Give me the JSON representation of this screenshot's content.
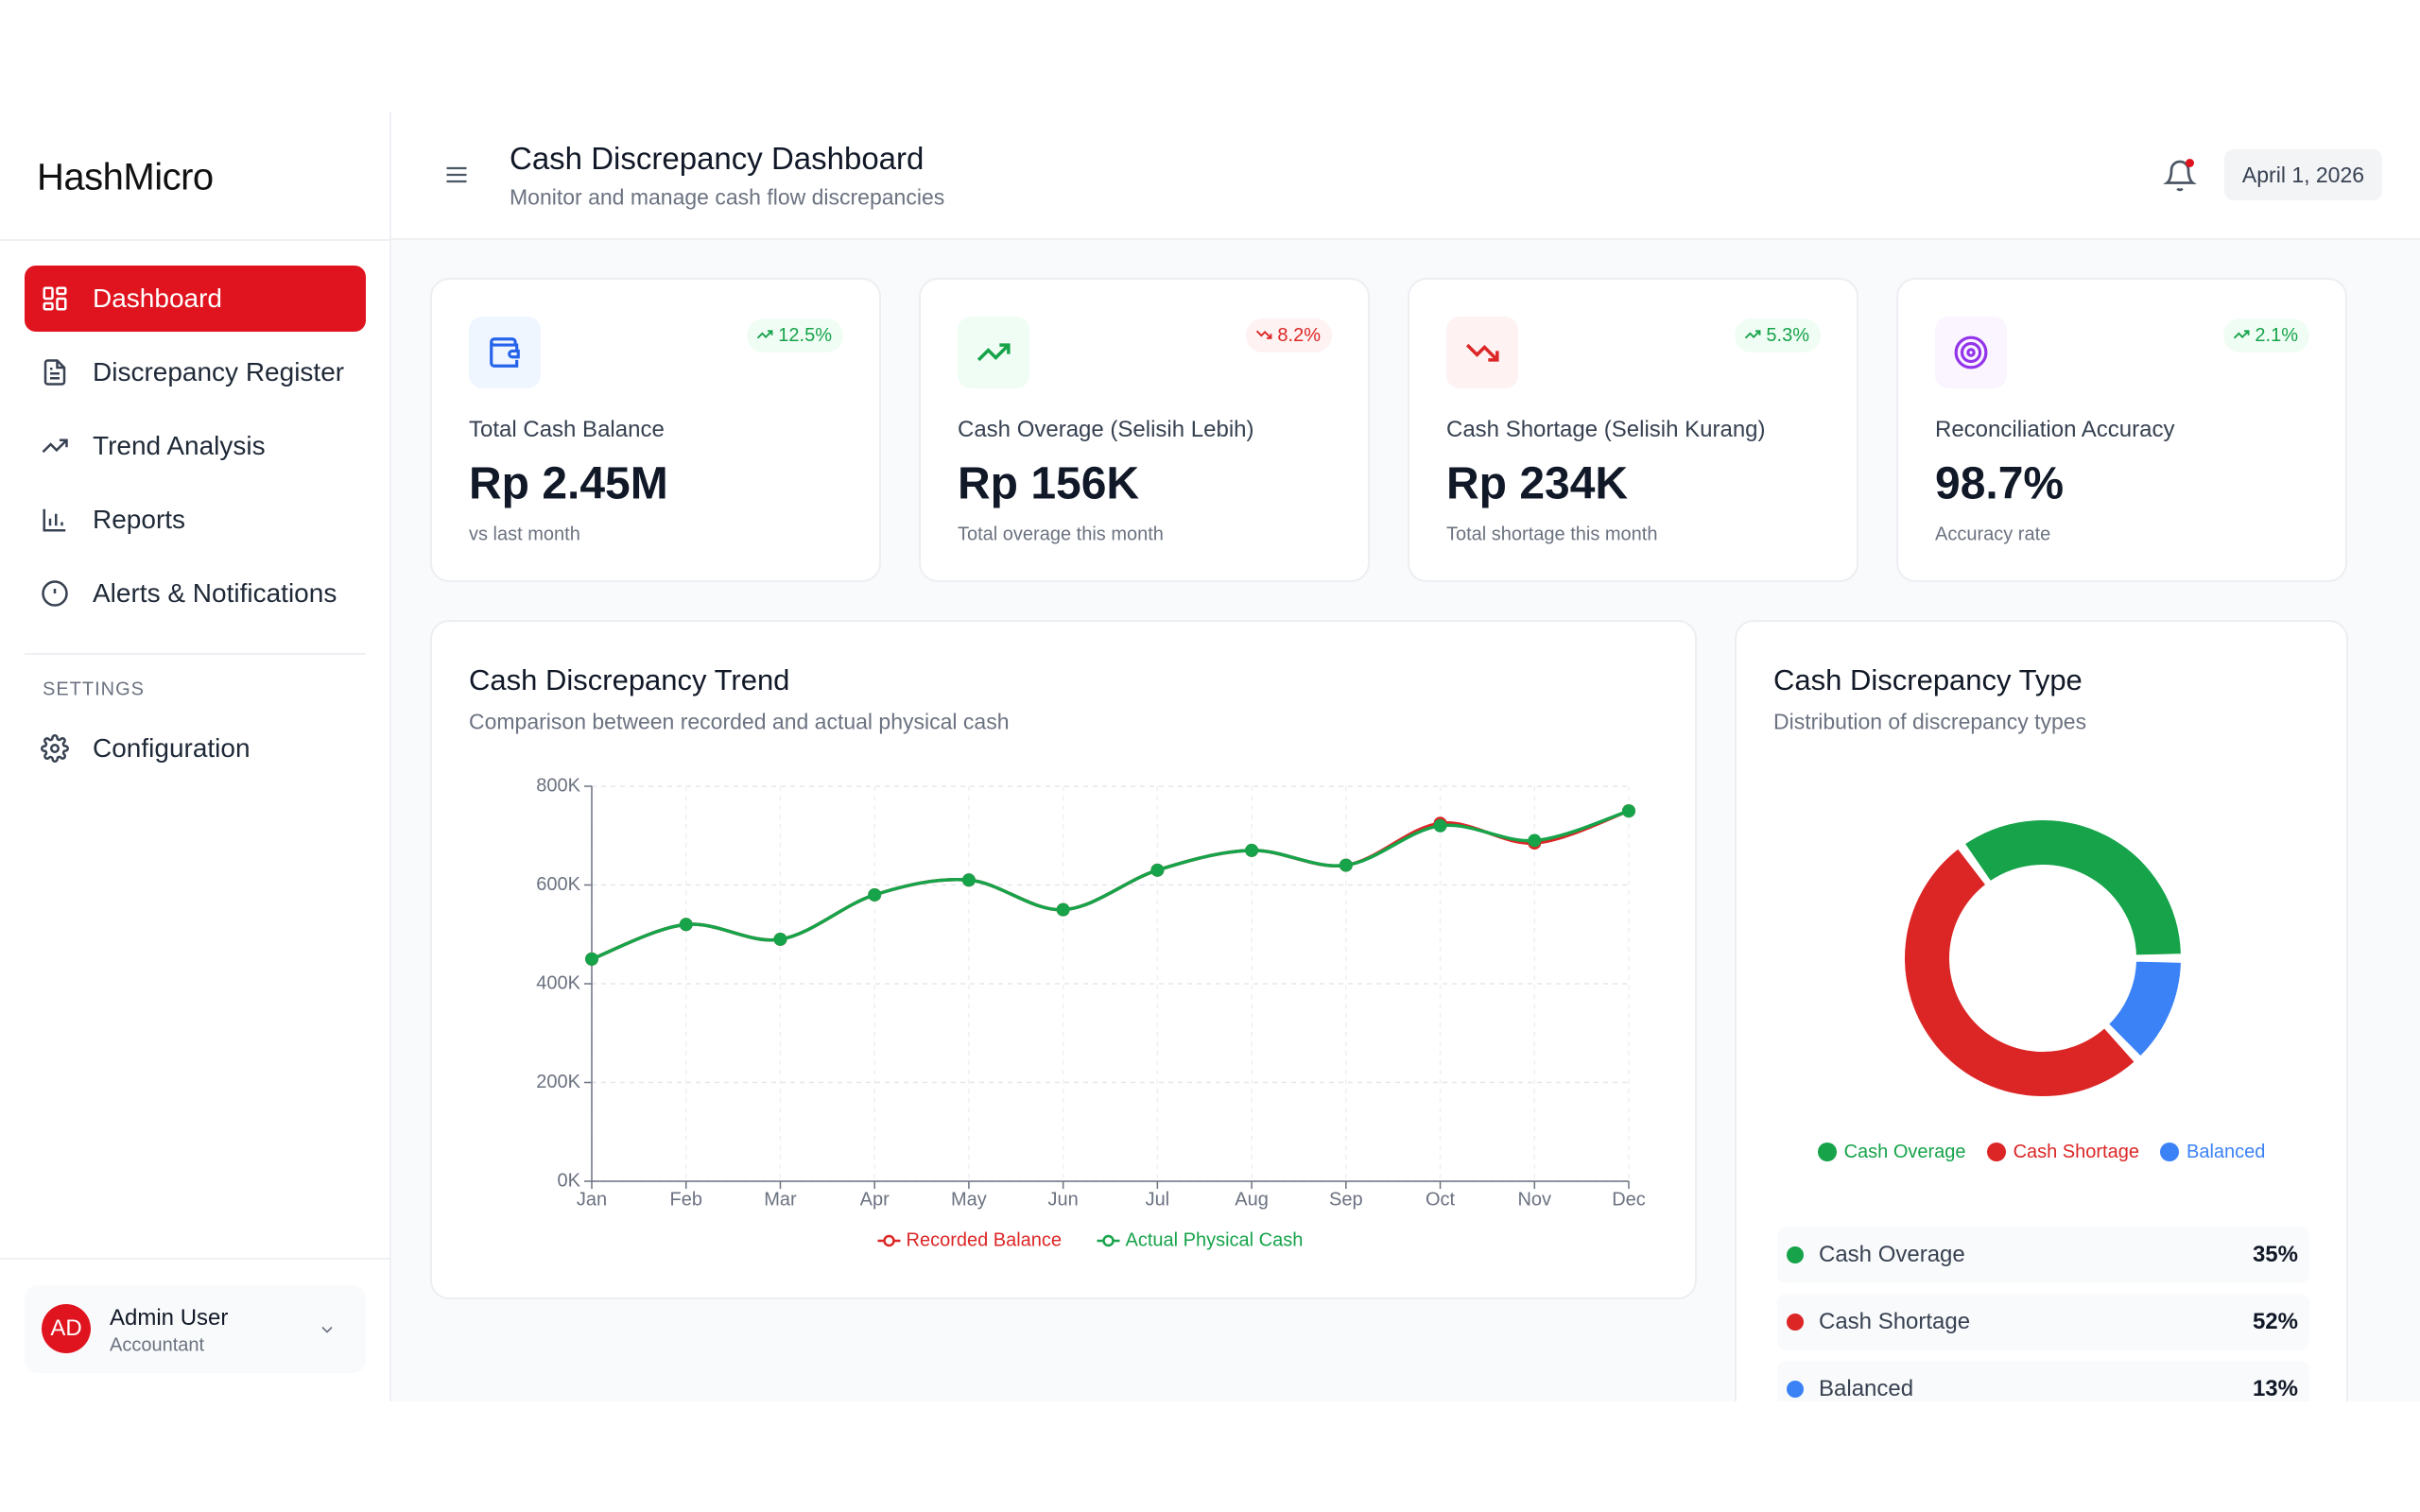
{
  "sidebar": {
    "logo": "HashMicro",
    "nav": [
      {
        "label": "Dashboard"
      },
      {
        "label": "Discrepancy Register"
      },
      {
        "label": "Trend Analysis"
      },
      {
        "label": "Reports"
      },
      {
        "label": "Alerts & Notifications"
      }
    ],
    "section": "SETTINGS",
    "settings_nav": [
      {
        "label": "Configuration"
      }
    ],
    "user": {
      "initials": "AD",
      "name": "Admin User",
      "role": "Accountant"
    }
  },
  "header": {
    "title": "Cash Discrepancy Dashboard",
    "subtitle": "Monitor and manage cash flow discrepancies",
    "date": "April 1, 2026"
  },
  "kpis": [
    {
      "label": "Total Cash Balance",
      "value": "Rp 2.45M",
      "note": "vs last month",
      "change": "12.5%",
      "trend": "up"
    },
    {
      "label": "Cash Overage (Selisih Lebih)",
      "value": "Rp 156K",
      "note": "Total overage this month",
      "change": "8.2%",
      "trend": "down"
    },
    {
      "label": "Cash Shortage (Selisih Kurang)",
      "value": "Rp 234K",
      "note": "Total shortage this month",
      "change": "5.3%",
      "trend": "up"
    },
    {
      "label": "Reconciliation Accuracy",
      "value": "98.7%",
      "note": "Accuracy rate",
      "change": "2.1%",
      "trend": "up"
    }
  ],
  "chart_data": [
    {
      "type": "line",
      "title": "Cash Discrepancy Trend",
      "subtitle": "Comparison between recorded and actual physical cash",
      "categories": [
        "Jan",
        "Feb",
        "Mar",
        "Apr",
        "May",
        "Jun",
        "Jul",
        "Aug",
        "Sep",
        "Oct",
        "Nov",
        "Dec"
      ],
      "series": [
        {
          "name": "Recorded Balance",
          "color": "#dc2626",
          "values": [
            450000,
            520000,
            490000,
            580000,
            610000,
            550000,
            630000,
            670000,
            640000,
            725000,
            685000,
            750000
          ]
        },
        {
          "name": "Actual Physical Cash",
          "color": "#16a34a",
          "values": [
            450000,
            520000,
            490000,
            580000,
            610000,
            550000,
            630000,
            670000,
            640000,
            720000,
            690000,
            750000
          ]
        }
      ],
      "ylim": [
        0,
        800000
      ],
      "yticks": [
        {
          "value": 0,
          "label": "0K"
        },
        {
          "value": 200000,
          "label": "200K"
        },
        {
          "value": 400000,
          "label": "400K"
        },
        {
          "value": 600000,
          "label": "600K"
        },
        {
          "value": 800000,
          "label": "800K"
        }
      ],
      "grid": true,
      "legend": "bottom"
    },
    {
      "type": "donut",
      "title": "Cash Discrepancy Type",
      "subtitle": "Distribution of discrepancy types",
      "categories": [
        "Cash Overage",
        "Cash Shortage",
        "Balanced"
      ],
      "values": [
        35,
        52,
        13
      ],
      "value_labels": [
        "35%",
        "52%",
        "13%"
      ],
      "colors": [
        "#16a34a",
        "#dc2626",
        "#3b82f6"
      ]
    }
  ]
}
